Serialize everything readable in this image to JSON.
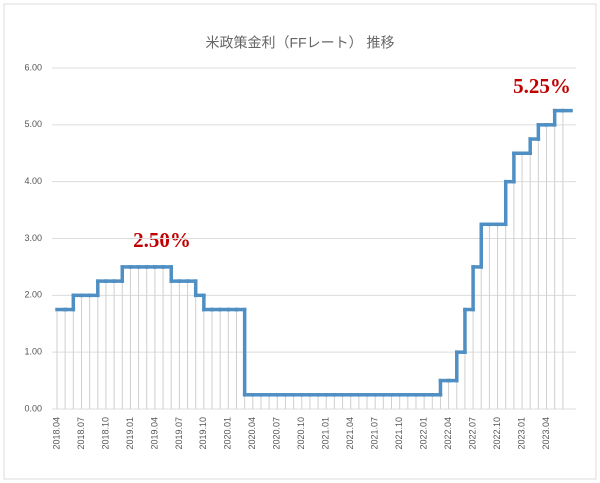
{
  "chart_data": {
    "type": "step",
    "title": "米政策金利（FFレート） 推移",
    "categories": [
      "2018.04",
      null,
      null,
      "2018.07",
      null,
      null,
      "2018.10",
      null,
      null,
      "2019.01",
      null,
      null,
      "2019.04",
      null,
      null,
      "2019.07",
      null,
      null,
      "2019.10",
      null,
      null,
      "2020.01",
      null,
      null,
      "2020.04",
      null,
      null,
      "2020.07",
      null,
      null,
      "2020.10",
      null,
      null,
      "2021.01",
      null,
      null,
      "2021.04",
      null,
      null,
      "2021.07",
      null,
      null,
      "2021.10",
      null,
      null,
      "2022.01",
      null,
      null,
      "2022.04",
      null,
      null,
      "2022.07",
      null,
      null,
      "2022.10",
      null,
      null,
      "2023.01",
      null,
      null,
      "2023.04",
      null,
      null
    ],
    "values": [
      1.75,
      1.75,
      2,
      2,
      2,
      2.25,
      2.25,
      2.25,
      2.5,
      2.5,
      2.5,
      2.5,
      2.5,
      2.5,
      2.25,
      2.25,
      2.25,
      2,
      1.75,
      1.75,
      1.75,
      1.75,
      1.75,
      0.25,
      0.25,
      0.25,
      0.25,
      0.25,
      0.25,
      0.25,
      0.25,
      0.25,
      0.25,
      0.25,
      0.25,
      0.25,
      0.25,
      0.25,
      0.25,
      0.25,
      0.25,
      0.25,
      0.25,
      0.25,
      0.25,
      0.25,
      0.25,
      0.5,
      0.5,
      1,
      1.75,
      2.5,
      3.25,
      3.25,
      3.25,
      4,
      4.5,
      4.5,
      4.75,
      5,
      5,
      5.25,
      5.25
    ],
    "color": "#4f8fc3",
    "ylim": [
      0,
      6
    ],
    "yticks": [
      {
        "value": 0,
        "label": "0.00"
      },
      {
        "value": 1,
        "label": "1.00"
      },
      {
        "value": 2,
        "label": "2.00"
      },
      {
        "value": 3,
        "label": "3.00"
      },
      {
        "value": 4,
        "label": "4.00"
      },
      {
        "value": 5,
        "label": "5.00"
      },
      {
        "value": 6,
        "label": "6.00"
      }
    ],
    "grid": true,
    "annotations": [
      "2.50%",
      "5.25%"
    ]
  }
}
